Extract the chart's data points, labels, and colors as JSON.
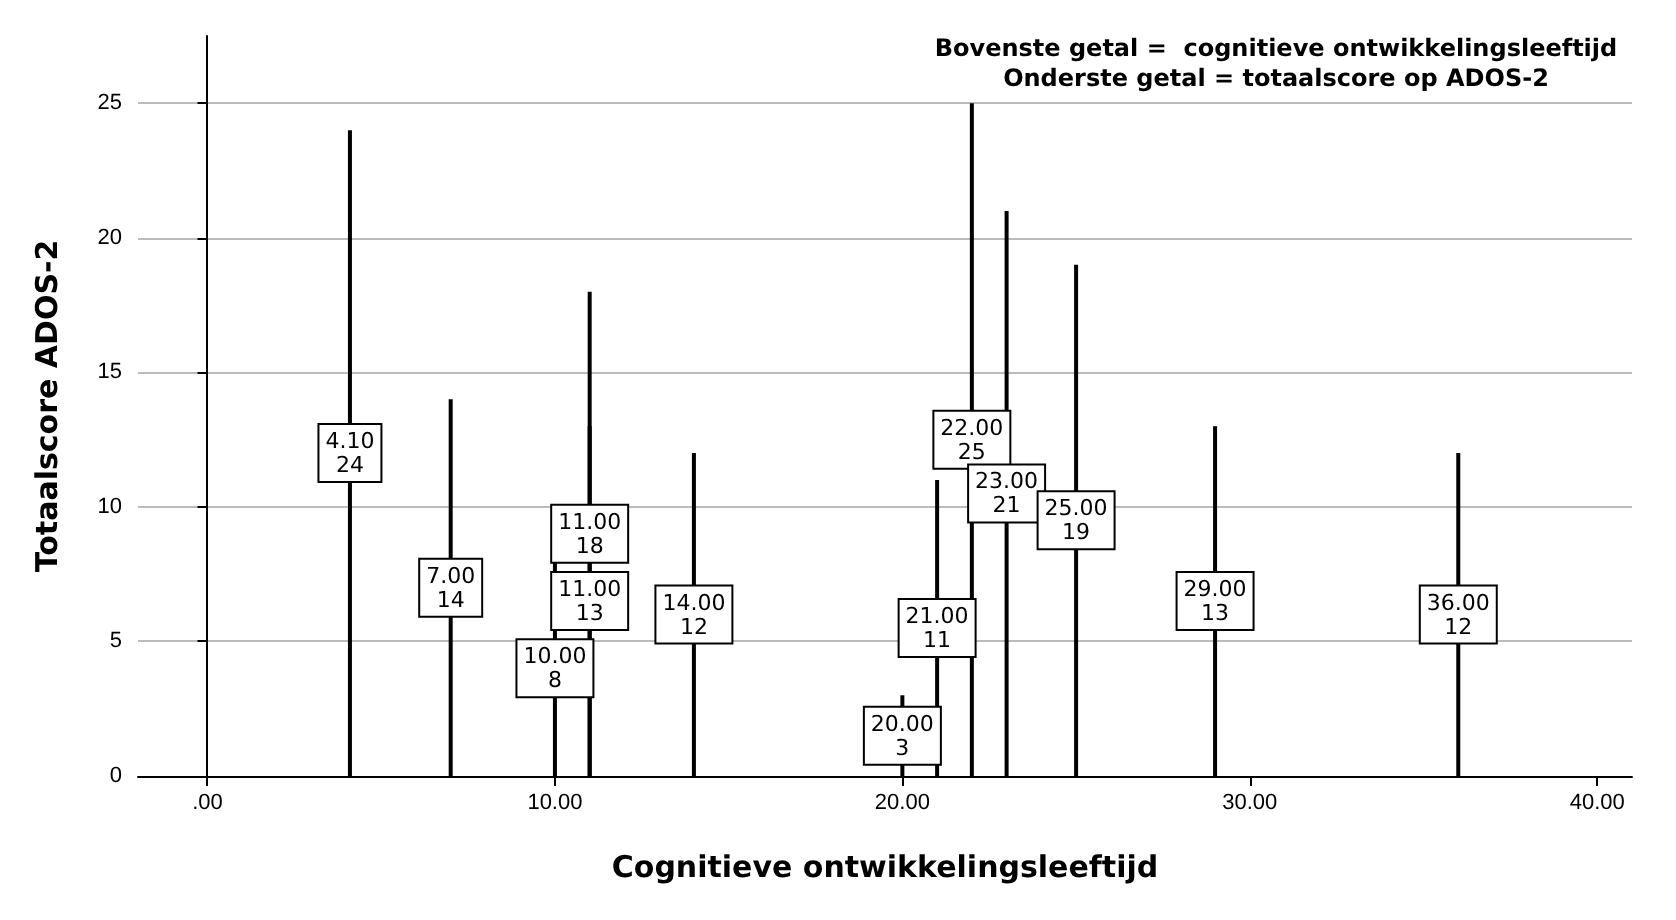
{
  "chart_data": {
    "type": "bar",
    "x": [
      4.1,
      7,
      10,
      11,
      14,
      20,
      21,
      22,
      23,
      25,
      29,
      36
    ],
    "series": [
      {
        "color": "#000000",
        "values": [
          24,
          14,
          8,
          18,
          12,
          3,
          11,
          25,
          21,
          19,
          13,
          12
        ],
        "value_labels": [
          "4.10\n24",
          "7.00\n14",
          "10.00\n8",
          "11.00\n18",
          "14.00\n12",
          "20.00\n3",
          "21.00\n11",
          "22.00\n25",
          "23.00\n21",
          "25.00\n19",
          "29.00\n13",
          "36.00\n12"
        ]
      },
      {
        "color": "#000000",
        "x": [
          11
        ],
        "values": [
          13
        ],
        "value_labels": [
          "11.00\n13"
        ]
      }
    ],
    "xlabel": "Cognitieve ontwikkelingsleeftijd",
    "ylabel": "Totaalscore ADOS-2",
    "annotations": [
      "Bovenste getal =  cognitieve ontwikkelingsleeftijd",
      "Onderste getal = totaalscore op ADOS-2"
    ],
    "xlim": [
      -2,
      41
    ],
    "xticks": [
      {
        "value": 0,
        "label": ".00"
      },
      {
        "value": 10,
        "label": "10.00"
      },
      {
        "value": 20,
        "label": "20.00"
      },
      {
        "value": 30,
        "label": "30.00"
      },
      {
        "value": 40,
        "label": "40.00"
      }
    ],
    "ylim": [
      0,
      27.5
    ],
    "yticks": [
      0,
      5,
      10,
      15,
      20,
      25
    ],
    "grid": "y"
  }
}
